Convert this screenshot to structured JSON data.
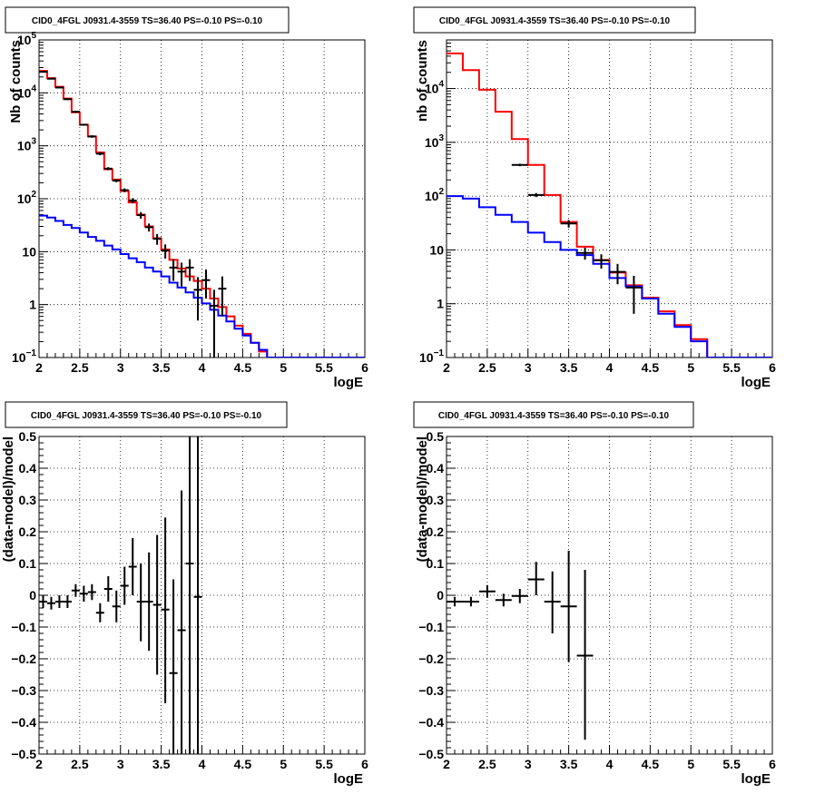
{
  "chart_data": [
    {
      "id": "top-left",
      "type": "line",
      "title": "CID0_4FGL J0931.4-3559 TS=36.40 PS=-0.10 PS=-0.10",
      "xlabel": "logE",
      "ylabel": "Nb of counts",
      "xlim": [
        2,
        6
      ],
      "ylim": [
        0.1,
        100000
      ],
      "log_y": true,
      "grid": true,
      "x_ticks": [
        "2",
        "2.5",
        "3",
        "3.5",
        "4",
        "4.5",
        "5",
        "5.5",
        "6"
      ],
      "y_ticks": [
        {
          "v": 0.1,
          "base": "10",
          "exp": "−1"
        },
        {
          "v": 1,
          "text": "1"
        },
        {
          "v": 10,
          "text": "10"
        },
        {
          "v": 100,
          "base": "10",
          "exp": "2"
        },
        {
          "v": 1000,
          "base": "10",
          "exp": "3"
        },
        {
          "v": 10000,
          "base": "10",
          "exp": "4"
        },
        {
          "v": 100000,
          "base": "10",
          "exp": "5"
        }
      ],
      "bin_edges": [
        2,
        2.1,
        2.2,
        2.3,
        2.4,
        2.5,
        2.6,
        2.7,
        2.8,
        2.9,
        3.0,
        3.1,
        3.2,
        3.3,
        3.4,
        3.5,
        3.6,
        3.7,
        3.8,
        3.9,
        4.0,
        4.1,
        4.2,
        4.3,
        4.4,
        4.5,
        4.6,
        4.7,
        4.8,
        4.9,
        5.0,
        5.1,
        5.2,
        5.3,
        5.4,
        5.5,
        5.6,
        5.7,
        5.8,
        5.9,
        6.0
      ],
      "series": [
        {
          "color": "#ff0000",
          "values": [
            26000,
            19000,
            13000,
            7800,
            4300,
            2500,
            1500,
            750,
            360,
            230,
            140,
            85,
            50,
            30,
            18,
            11,
            7,
            4.8,
            3.4,
            2.8,
            2.0,
            1.3,
            0.9,
            0.6,
            0.4,
            0.28,
            0.19,
            0.13,
            0.1,
            0.1,
            0.1,
            0.1,
            0.1,
            0.1,
            0.1,
            0.1,
            0.1,
            0.1,
            0.1,
            0.1
          ]
        },
        {
          "color": "#0000ff",
          "values": [
            48,
            44,
            38,
            32,
            28,
            23,
            19,
            16,
            13,
            11,
            9,
            7.5,
            6.3,
            5,
            4.2,
            3.4,
            2.6,
            2.1,
            1.7,
            1.35,
            1.05,
            0.8,
            0.62,
            0.48,
            0.35,
            0.26,
            0.19,
            0.14,
            0.1,
            0.1,
            0.1,
            0.1,
            0.1,
            0.1,
            0.1,
            0.1,
            0.1,
            0.1,
            0.1,
            0.1
          ]
        }
      ],
      "points": [
        {
          "x": 2.05,
          "y": 25000,
          "ylo": 24500,
          "yhi": 25500
        },
        {
          "x": 2.15,
          "y": 18500,
          "ylo": 18000,
          "yhi": 19000
        },
        {
          "x": 2.25,
          "y": 12600,
          "ylo": 12200,
          "yhi": 13000
        },
        {
          "x": 2.35,
          "y": 7600,
          "ylo": 7300,
          "yhi": 7900
        },
        {
          "x": 2.45,
          "y": 4400,
          "ylo": 4200,
          "yhi": 4600
        },
        {
          "x": 2.55,
          "y": 2500,
          "ylo": 2400,
          "yhi": 2600
        },
        {
          "x": 2.65,
          "y": 1500,
          "ylo": 1420,
          "yhi": 1580
        },
        {
          "x": 2.75,
          "y": 710,
          "ylo": 660,
          "yhi": 760
        },
        {
          "x": 2.85,
          "y": 370,
          "ylo": 345,
          "yhi": 395
        },
        {
          "x": 2.95,
          "y": 220,
          "ylo": 205,
          "yhi": 235
        },
        {
          "x": 3.05,
          "y": 145,
          "ylo": 133,
          "yhi": 157
        },
        {
          "x": 3.15,
          "y": 92,
          "ylo": 82,
          "yhi": 102
        },
        {
          "x": 3.25,
          "y": 49,
          "ylo": 42,
          "yhi": 56
        },
        {
          "x": 3.35,
          "y": 29,
          "ylo": 24,
          "yhi": 34
        },
        {
          "x": 3.45,
          "y": 17.5,
          "ylo": 13.5,
          "yhi": 21.5
        },
        {
          "x": 3.55,
          "y": 10.5,
          "ylo": 7.4,
          "yhi": 13.7
        },
        {
          "x": 3.65,
          "y": 5,
          "ylo": 2.8,
          "yhi": 7.2
        },
        {
          "x": 3.75,
          "y": 4.2,
          "ylo": 2.2,
          "yhi": 6.2
        },
        {
          "x": 3.85,
          "y": 5,
          "ylo": 2.8,
          "yhi": 7.2
        },
        {
          "x": 3.95,
          "y": 1.9,
          "ylo": 0.5,
          "yhi": 3.3
        },
        {
          "x": 4.05,
          "y": 2.9,
          "ylo": 1.3,
          "yhi": 4.6
        },
        {
          "x": 4.15,
          "y": 0.95,
          "ylo": 0.1,
          "yhi": 1.9
        },
        {
          "x": 4.25,
          "y": 2,
          "ylo": 0.6,
          "yhi": 3.4
        }
      ]
    },
    {
      "id": "top-right",
      "type": "line",
      "title": "CID0_4FGL J0931.4-3559 TS=36.40 PS=-0.10 PS=-0.10",
      "xlabel": "logE",
      "ylabel": "nb of counts",
      "xlim": [
        2,
        6
      ],
      "ylim": [
        0.1,
        80000
      ],
      "log_y": true,
      "grid": true,
      "x_ticks": [
        "2",
        "2.5",
        "3",
        "3.5",
        "4",
        "4.5",
        "5",
        "5.5",
        "6"
      ],
      "y_ticks": [
        {
          "v": 0.1,
          "base": "10",
          "exp": "−1"
        },
        {
          "v": 1,
          "text": "1"
        },
        {
          "v": 10,
          "text": "10"
        },
        {
          "v": 100,
          "base": "10",
          "exp": "2"
        },
        {
          "v": 1000,
          "base": "10",
          "exp": "3"
        },
        {
          "v": 10000,
          "base": "10",
          "exp": "4"
        }
      ],
      "bin_edges": [
        2,
        2.2,
        2.4,
        2.6,
        2.8,
        3.0,
        3.2,
        3.4,
        3.6,
        3.8,
        4.0,
        4.2,
        4.4,
        4.6,
        4.8,
        5.0,
        5.2,
        5.4,
        5.6,
        5.8,
        6.0
      ],
      "series": [
        {
          "color": "#ff0000",
          "values": [
            45000,
            22000,
            9500,
            3700,
            1150,
            380,
            105,
            33,
            11.5,
            6.5,
            3.8,
            2.2,
            1.3,
            0.72,
            0.4,
            0.22,
            0.1,
            0.1,
            0.1,
            0.1
          ]
        },
        {
          "color": "#0000ff",
          "values": [
            100,
            90,
            62,
            45,
            33,
            21,
            14,
            10,
            8,
            5.5,
            3.0,
            2.1,
            1.25,
            0.65,
            0.37,
            0.2,
            0.1,
            0.1,
            0.1,
            0.1
          ]
        }
      ],
      "points": [
        {
          "x": 2.9,
          "y": 380,
          "ylo": 360,
          "yhi": 400
        },
        {
          "x": 3.1,
          "y": 105,
          "ylo": 96,
          "yhi": 114
        },
        {
          "x": 3.5,
          "y": 31,
          "ylo": 26,
          "yhi": 36
        },
        {
          "x": 3.7,
          "y": 8.8,
          "ylo": 6.6,
          "yhi": 11
        },
        {
          "x": 3.9,
          "y": 6.4,
          "ylo": 4.5,
          "yhi": 8.3
        },
        {
          "x": 4.1,
          "y": 3.9,
          "ylo": 2.3,
          "yhi": 5.5
        },
        {
          "x": 4.3,
          "y": 2,
          "ylo": 0.65,
          "yhi": 3.3
        }
      ]
    },
    {
      "id": "bottom-left",
      "type": "scatter",
      "title": "CID0_4FGL J0931.4-3559 TS=36.40 PS=-0.10 PS=-0.10",
      "xlabel": "logE",
      "ylabel": "(data-model)/model",
      "xlim": [
        2,
        6
      ],
      "ylim": [
        -0.5,
        0.5
      ],
      "log_y": false,
      "grid": true,
      "x_ticks": [
        "2",
        "2.5",
        "3",
        "3.5",
        "4",
        "4.5",
        "5",
        "5.5",
        "6"
      ],
      "y_ticks": [
        {
          "v": -0.5,
          "text": "−0.5"
        },
        {
          "v": -0.4,
          "text": "−0.4"
        },
        {
          "v": -0.3,
          "text": "−0.3"
        },
        {
          "v": -0.2,
          "text": "−0.2"
        },
        {
          "v": -0.1,
          "text": "−0.1"
        },
        {
          "v": 0,
          "text": "0"
        },
        {
          "v": 0.1,
          "text": "0.1"
        },
        {
          "v": 0.2,
          "text": "0.2"
        },
        {
          "v": 0.3,
          "text": "0.3"
        },
        {
          "v": 0.4,
          "text": "0.4"
        },
        {
          "v": 0.5,
          "text": "0.5"
        }
      ],
      "points": [
        {
          "x": 2.05,
          "y": -0.02,
          "ylo": -0.04,
          "yhi": 0.0
        },
        {
          "x": 2.15,
          "y": -0.025,
          "ylo": -0.045,
          "yhi": -0.005
        },
        {
          "x": 2.25,
          "y": -0.02,
          "ylo": -0.04,
          "yhi": 0.0
        },
        {
          "x": 2.35,
          "y": -0.02,
          "ylo": -0.04,
          "yhi": 0.0
        },
        {
          "x": 2.45,
          "y": 0.015,
          "ylo": -0.005,
          "yhi": 0.035
        },
        {
          "x": 2.55,
          "y": 0.005,
          "ylo": -0.02,
          "yhi": 0.03
        },
        {
          "x": 2.65,
          "y": 0.01,
          "ylo": -0.015,
          "yhi": 0.035
        },
        {
          "x": 2.75,
          "y": -0.055,
          "ylo": -0.085,
          "yhi": -0.025
        },
        {
          "x": 2.85,
          "y": 0.02,
          "ylo": -0.02,
          "yhi": 0.06
        },
        {
          "x": 2.95,
          "y": -0.035,
          "ylo": -0.085,
          "yhi": 0.015
        },
        {
          "x": 3.05,
          "y": 0.03,
          "ylo": -0.03,
          "yhi": 0.09
        },
        {
          "x": 3.15,
          "y": 0.09,
          "ylo": 0.0,
          "yhi": 0.18
        },
        {
          "x": 3.25,
          "y": -0.02,
          "ylo": -0.145,
          "yhi": 0.1
        },
        {
          "x": 3.35,
          "y": -0.02,
          "ylo": -0.175,
          "yhi": 0.135
        },
        {
          "x": 3.45,
          "y": -0.03,
          "ylo": -0.25,
          "yhi": 0.19
        },
        {
          "x": 3.55,
          "y": -0.045,
          "ylo": -0.34,
          "yhi": 0.245
        },
        {
          "x": 3.65,
          "y": -0.245,
          "ylo": -0.5,
          "yhi": 0.05
        },
        {
          "x": 3.75,
          "y": -0.11,
          "ylo": -0.5,
          "yhi": 0.33
        },
        {
          "x": 3.85,
          "y": 0.1,
          "ylo": -0.5,
          "yhi": 0.5
        },
        {
          "x": 3.95,
          "y": -0.005,
          "ylo": -0.5,
          "yhi": 0.5
        }
      ]
    },
    {
      "id": "bottom-right",
      "type": "scatter",
      "title": "CID0_4FGL J0931.4-3559 TS=36.40 PS=-0.10 PS=-0.10",
      "xlabel": "logE",
      "ylabel": "(data-model)/model",
      "xlim": [
        2,
        6
      ],
      "ylim": [
        -0.5,
        0.5
      ],
      "log_y": false,
      "grid": true,
      "x_ticks": [
        "2",
        "2.5",
        "3",
        "3.5",
        "4",
        "4.5",
        "5",
        "5.5",
        "6"
      ],
      "y_ticks": [
        {
          "v": -0.5,
          "text": "−0.5"
        },
        {
          "v": -0.4,
          "text": "−0.4"
        },
        {
          "v": -0.3,
          "text": "−0.3"
        },
        {
          "v": -0.2,
          "text": "−0.2"
        },
        {
          "v": -0.1,
          "text": "−0.1"
        },
        {
          "v": 0,
          "text": "0"
        },
        {
          "v": 0.1,
          "text": "0.1"
        },
        {
          "v": 0.2,
          "text": "0.2"
        },
        {
          "v": 0.3,
          "text": "0.3"
        },
        {
          "v": 0.4,
          "text": "0.4"
        },
        {
          "v": 0.5,
          "text": "0.5"
        }
      ],
      "points": [
        {
          "x": 2.1,
          "y": -0.02,
          "ylo": -0.035,
          "yhi": -0.005
        },
        {
          "x": 2.3,
          "y": -0.02,
          "ylo": -0.035,
          "yhi": -0.005
        },
        {
          "x": 2.5,
          "y": 0.012,
          "ylo": -0.008,
          "yhi": 0.032
        },
        {
          "x": 2.7,
          "y": -0.015,
          "ylo": -0.035,
          "yhi": 0.005
        },
        {
          "x": 2.9,
          "y": -0.002,
          "ylo": -0.025,
          "yhi": 0.02
        },
        {
          "x": 3.1,
          "y": 0.05,
          "ylo": 0.0,
          "yhi": 0.105
        },
        {
          "x": 3.3,
          "y": -0.02,
          "ylo": -0.12,
          "yhi": 0.075
        },
        {
          "x": 3.5,
          "y": -0.035,
          "ylo": -0.21,
          "yhi": 0.14
        },
        {
          "x": 3.7,
          "y": -0.19,
          "ylo": -0.455,
          "yhi": 0.08
        }
      ]
    }
  ]
}
